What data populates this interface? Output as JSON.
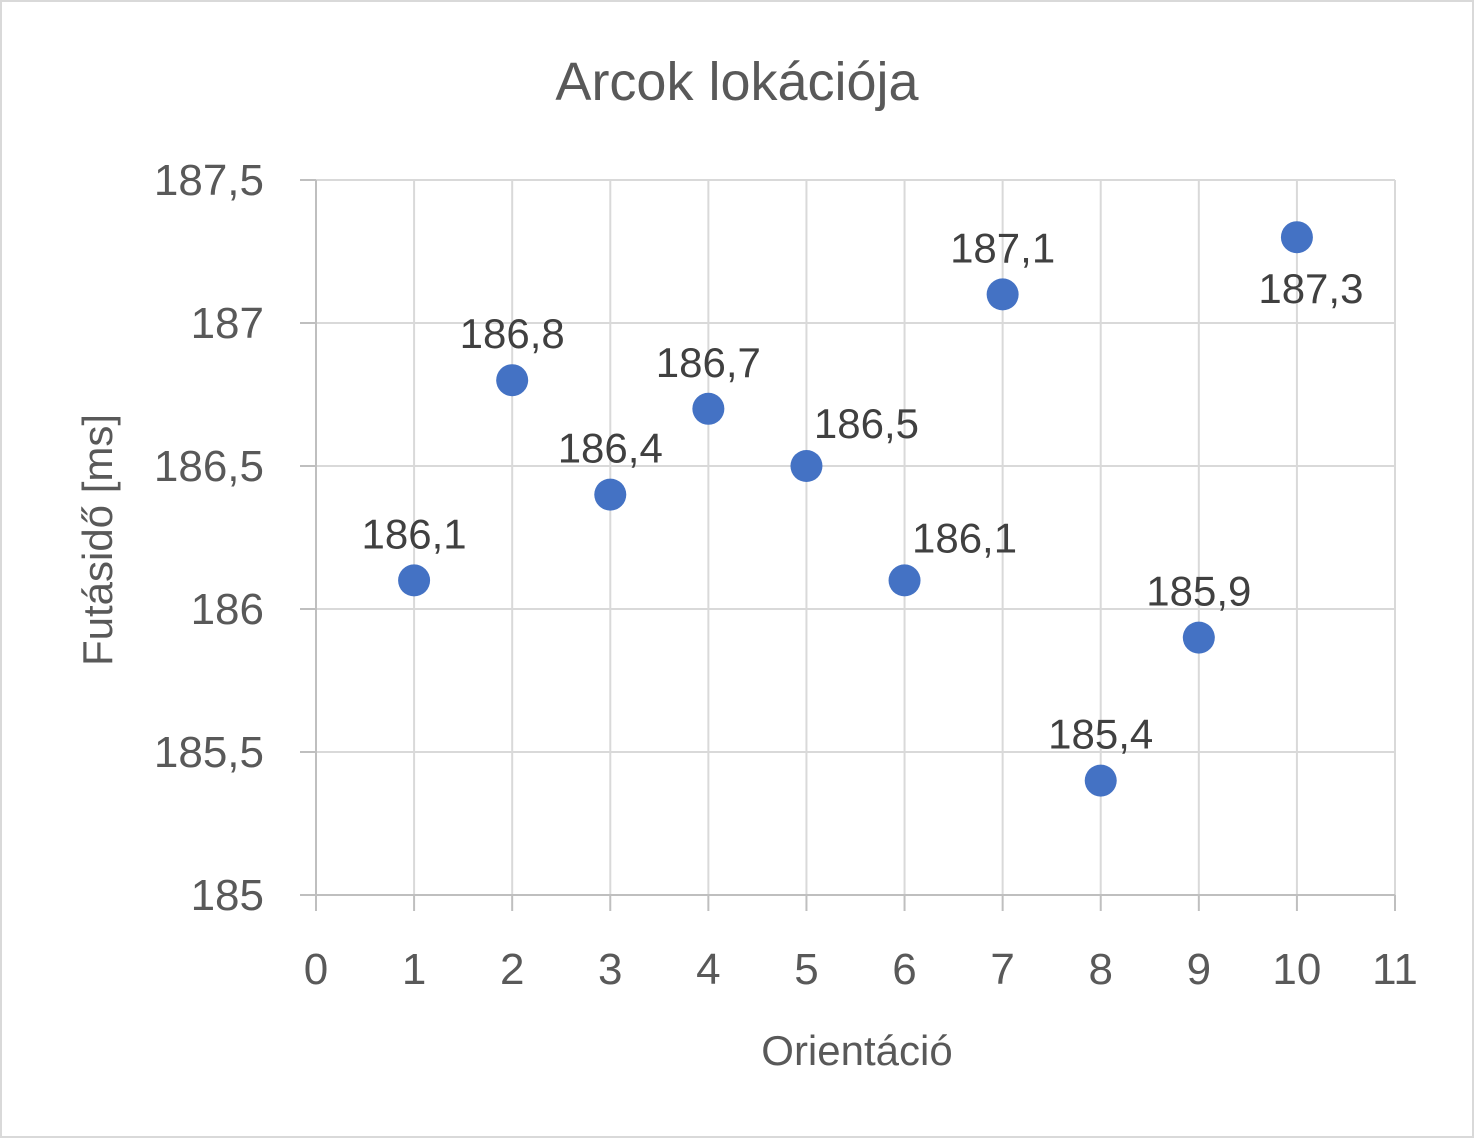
{
  "chart_data": {
    "type": "scatter",
    "title": "Arcok lokációja",
    "xlabel": "Orientáció",
    "ylabel": "Futásidő [ms]",
    "xlim": [
      0,
      11
    ],
    "ylim": [
      185,
      187.5
    ],
    "x_ticks": [
      0,
      1,
      2,
      3,
      4,
      5,
      6,
      7,
      8,
      9,
      10,
      11
    ],
    "x_tick_labels": [
      "0",
      "1",
      "2",
      "3",
      "4",
      "5",
      "6",
      "7",
      "8",
      "9",
      "10",
      "11"
    ],
    "y_ticks": [
      185,
      185.5,
      186,
      186.5,
      187,
      187.5
    ],
    "y_tick_labels": [
      "185",
      "185,5",
      "186",
      "186,5",
      "187",
      "187,5"
    ],
    "grid": true,
    "legend": "none",
    "series": [
      {
        "color": "#4472c4",
        "x": [
          1,
          2,
          3,
          4,
          5,
          6,
          7,
          8,
          9,
          10
        ],
        "y": [
          186.1,
          186.8,
          186.4,
          186.7,
          186.5,
          186.1,
          187.1,
          185.4,
          185.9,
          187.3
        ],
        "data_labels": [
          "186,1",
          "186,8",
          "186,4",
          "186,7",
          "186,5",
          "186,1",
          "187,1",
          "185,4",
          "185,9",
          "187,3"
        ],
        "label_positions": [
          "above",
          "above",
          "above",
          "above",
          "above-right",
          "above-right",
          "above",
          "above",
          "above",
          "below"
        ]
      }
    ]
  }
}
